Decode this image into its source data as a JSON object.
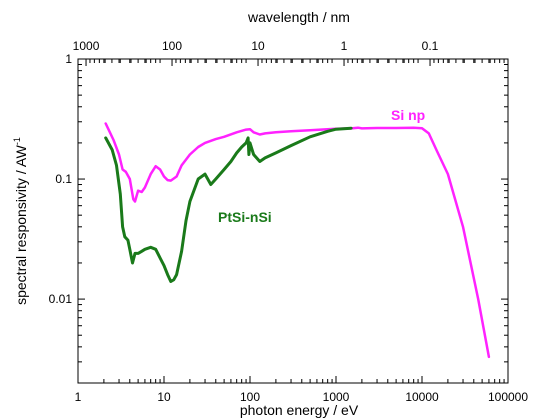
{
  "chart_data": {
    "type": "line",
    "xlabel": "photon energy / eV",
    "x2label": "wavelength / nm",
    "ylabel_main": "spectral responsivity / AW",
    "ylabel_sup": "-1",
    "x_scale": "log",
    "y_scale": "log",
    "xlim": [
      1,
      100000
    ],
    "ylim": [
      0.002,
      1
    ],
    "x_ticks": [
      {
        "value": 1,
        "label": "1"
      },
      {
        "value": 10,
        "label": "10"
      },
      {
        "value": 100,
        "label": "100"
      },
      {
        "value": 1000,
        "label": "1000"
      },
      {
        "value": 10000,
        "label": "10000"
      },
      {
        "value": 100000,
        "label": "100000"
      }
    ],
    "y_ticks": [
      {
        "value": 0.01,
        "label": "0.01"
      },
      {
        "value": 0.1,
        "label": "0.1"
      },
      {
        "value": 1,
        "label": "1"
      }
    ],
    "x2_ticks": [
      {
        "value": 1000,
        "label": "1000"
      },
      {
        "value": 100,
        "label": "100"
      },
      {
        "value": 10,
        "label": "10"
      },
      {
        "value": 1,
        "label": "1"
      },
      {
        "value": 0.1,
        "label": "0.1"
      }
    ],
    "x2_conversion_eV_nm": 1239.84,
    "grid": false,
    "series": [
      {
        "name": "Si np",
        "color": "#ff22ff",
        "x": [
          2.1,
          2.6,
          3.0,
          3.3,
          3.6,
          4.0,
          4.4,
          4.6,
          5.0,
          5.5,
          6.0,
          7.0,
          8.0,
          9.0,
          10.0,
          11.0,
          12.0,
          14.0,
          16.0,
          20.0,
          25.0,
          30.0,
          40.0,
          50.0,
          70.0,
          90.0,
          100.0,
          110.0,
          130.0,
          150.0,
          200.0,
          300.0,
          500.0,
          1000.0,
          1500.0,
          1800.0,
          2000.0,
          3000.0,
          5000.0,
          8000.0,
          10000.0,
          12000.0,
          15000.0,
          20000.0,
          30000.0,
          45000.0,
          60000.0
        ],
        "y": [
          0.29,
          0.21,
          0.16,
          0.12,
          0.115,
          0.1,
          0.068,
          0.065,
          0.08,
          0.078,
          0.085,
          0.11,
          0.128,
          0.12,
          0.105,
          0.098,
          0.097,
          0.105,
          0.13,
          0.16,
          0.185,
          0.2,
          0.215,
          0.225,
          0.245,
          0.258,
          0.26,
          0.245,
          0.235,
          0.24,
          0.245,
          0.25,
          0.255,
          0.262,
          0.264,
          0.268,
          0.264,
          0.266,
          0.266,
          0.267,
          0.265,
          0.24,
          0.17,
          0.11,
          0.04,
          0.01,
          0.0033
        ]
      },
      {
        "name": "PtSi-nSi",
        "color": "#1a7a1a",
        "x": [
          2.1,
          2.5,
          2.8,
          3.1,
          3.3,
          3.5,
          3.8,
          4.0,
          4.3,
          4.6,
          5.0,
          5.5,
          6.0,
          7.0,
          8.0,
          9.0,
          10.0,
          11.0,
          12.0,
          13.0,
          14.0,
          16.0,
          18.0,
          20.0,
          25.0,
          30.0,
          35.0,
          40.0,
          50.0,
          60.0,
          70.0,
          80.0,
          90.0,
          95.0,
          97.0,
          100.0,
          110.0,
          130.0,
          150.0,
          200.0,
          300.0,
          500.0,
          800.0,
          1000.0,
          1500.0
        ],
        "y": [
          0.22,
          0.175,
          0.13,
          0.075,
          0.04,
          0.033,
          0.031,
          0.026,
          0.02,
          0.024,
          0.024,
          0.025,
          0.026,
          0.027,
          0.026,
          0.022,
          0.019,
          0.016,
          0.014,
          0.0145,
          0.016,
          0.025,
          0.045,
          0.065,
          0.1,
          0.11,
          0.09,
          0.1,
          0.12,
          0.14,
          0.165,
          0.185,
          0.2,
          0.22,
          0.16,
          0.2,
          0.16,
          0.14,
          0.15,
          0.165,
          0.19,
          0.225,
          0.25,
          0.26,
          0.265
        ]
      }
    ]
  }
}
